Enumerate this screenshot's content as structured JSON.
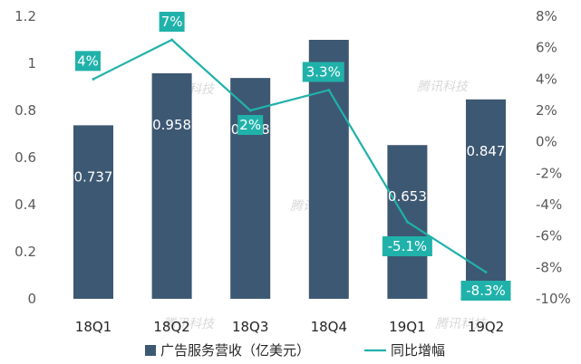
{
  "chart_data": {
    "type": "bar",
    "categories": [
      "18Q1",
      "18Q2",
      "18Q3",
      "18Q4",
      "19Q1",
      "19Q2"
    ],
    "series": [
      {
        "name": "广告服务营收（亿美元）",
        "type": "bar",
        "axis": "left",
        "values": [
          0.737,
          0.958,
          0.938,
          1.1,
          0.653,
          0.847
        ],
        "labels": [
          "0.737",
          "0.958",
          "0.938",
          "",
          "0.653",
          "0.847"
        ],
        "color": "#3d5872"
      },
      {
        "name": "同比增幅",
        "type": "line",
        "axis": "right",
        "values": [
          4,
          6.5,
          2,
          3.3,
          -5.1,
          -8.3
        ],
        "labels": [
          "4%",
          "7%",
          "2%",
          "3.3%",
          "-5.1%",
          "-8.3%"
        ],
        "color": "#20b2aa"
      }
    ],
    "y_left": {
      "ylim": [
        0,
        1.2
      ],
      "ticks": [
        0,
        0.2,
        0.4,
        0.6,
        0.8,
        1,
        1.2
      ],
      "tick_labels": [
        "0",
        "0.2",
        "0.4",
        "0.6",
        "0.8",
        "1",
        "1.2"
      ]
    },
    "y_right": {
      "ylim": [
        -10,
        8
      ],
      "ticks": [
        8,
        6,
        4,
        2,
        0,
        -2,
        -4,
        -6,
        -8,
        -10
      ],
      "tick_labels": [
        "8%",
        "6%",
        "4%",
        "2%",
        "0%",
        "-2%",
        "-4%",
        "-6%",
        "-8%",
        "-10%"
      ]
    },
    "grid": false,
    "legend": "bottom",
    "title": "",
    "xlabel": "",
    "ylabel": ""
  },
  "watermark": "腾讯科技"
}
